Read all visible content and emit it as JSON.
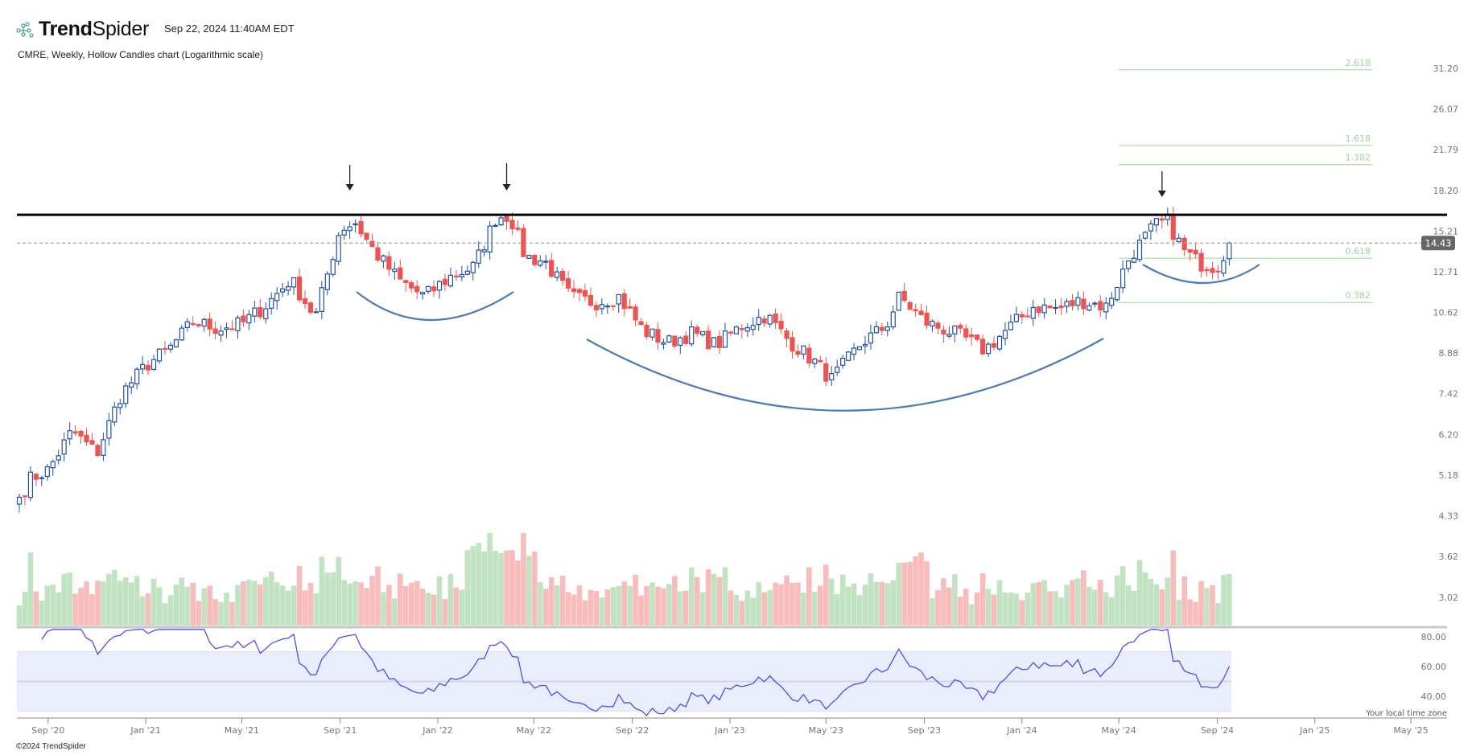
{
  "header": {
    "brand_bold": "Trend",
    "brand_light": "Spider",
    "timestamp": "Sep 22, 2024 11:40AM EDT",
    "subtitle": "CMRE, Weekly, Hollow Candles chart (Logarithmic scale)"
  },
  "footer": {
    "copyright": "©2024 TrendSpider",
    "timezone_note": "Your local time zone"
  },
  "colors": {
    "up": "#1f4fa8",
    "down": "#ef5350",
    "vol_up": "#c2e3c2",
    "vol_down": "#f9bcbc",
    "rsi": "#4b4ef0",
    "rsi_band": "#eaedfb",
    "fib": "#9fd39f",
    "curve": "#4a7bbf"
  },
  "chart_data": {
    "type": "candlestick",
    "ticker": "CMRE",
    "interval": "Weekly",
    "scale": "log",
    "start_week": "2020-07-27",
    "end_week": "2024-09-16",
    "price_axis_ticks": [
      "31.20",
      "26.07",
      "21.79",
      "18.20",
      "15.21",
      "12.71",
      "10.62",
      "8.88",
      "7.42",
      "6.20",
      "5.18",
      "4.33",
      "3.62",
      "3.02"
    ],
    "last_price": "14.43",
    "rsi_axis_ticks": [
      "80.00",
      "60.00",
      "40.00"
    ],
    "rsi_band": [
      30,
      70
    ],
    "x_ticks": [
      "Sep '20",
      "Jan '21",
      "May '21",
      "Sep '21",
      "Jan '22",
      "May '22",
      "Sep '22",
      "Jan '23",
      "May '23",
      "Sep '23",
      "Jan '24",
      "May '24",
      "Sep '24",
      "Jan '25",
      "May '25"
    ],
    "x_tick_dates": [
      "2020-09-01",
      "2021-01-01",
      "2021-05-01",
      "2021-09-01",
      "2022-01-01",
      "2022-05-01",
      "2022-09-01",
      "2023-01-01",
      "2023-05-01",
      "2023-09-01",
      "2024-01-01",
      "2024-05-01",
      "2024-09-01",
      "2025-01-01",
      "2025-05-01"
    ],
    "close_anchors": [
      [
        "2020-07-27",
        4.7
      ],
      [
        "2020-08-10",
        5.1
      ],
      [
        "2020-09-01",
        5.3
      ],
      [
        "2020-10-01",
        6.3
      ],
      [
        "2020-11-01",
        5.7
      ],
      [
        "2020-12-01",
        7.4
      ],
      [
        "2021-01-01",
        8.4
      ],
      [
        "2021-02-01",
        9.1
      ],
      [
        "2021-03-01",
        10.2
      ],
      [
        "2021-04-01",
        9.9
      ],
      [
        "2021-05-01",
        10.1
      ],
      [
        "2021-06-01",
        11.0
      ],
      [
        "2021-07-01",
        12.3
      ],
      [
        "2021-08-01",
        10.4
      ],
      [
        "2021-09-01",
        15.4
      ],
      [
        "2021-09-20",
        15.8
      ],
      [
        "2021-10-15",
        13.8
      ],
      [
        "2021-11-15",
        12.2
      ],
      [
        "2021-12-15",
        11.4
      ],
      [
        "2022-01-15",
        12.4
      ],
      [
        "2022-02-15",
        13.0
      ],
      [
        "2022-03-15",
        16.2
      ],
      [
        "2022-04-01",
        16.3
      ],
      [
        "2022-04-20",
        13.6
      ],
      [
        "2022-05-15",
        13.3
      ],
      [
        "2022-06-15",
        11.4
      ],
      [
        "2022-07-15",
        11.1
      ],
      [
        "2022-08-15",
        11.4
      ],
      [
        "2022-09-15",
        9.8
      ],
      [
        "2022-10-15",
        9.3
      ],
      [
        "2022-11-15",
        9.7
      ],
      [
        "2022-12-15",
        9.2
      ],
      [
        "2023-01-15",
        10.0
      ],
      [
        "2023-02-15",
        10.5
      ],
      [
        "2023-03-15",
        9.4
      ],
      [
        "2023-04-15",
        8.6
      ],
      [
        "2023-05-08",
        7.9
      ],
      [
        "2023-06-15",
        9.3
      ],
      [
        "2023-07-15",
        10.0
      ],
      [
        "2023-08-01",
        11.4
      ],
      [
        "2023-09-01",
        10.2
      ],
      [
        "2023-10-15",
        9.6
      ],
      [
        "2023-11-15",
        9.0
      ],
      [
        "2023-12-15",
        9.9
      ],
      [
        "2024-01-15",
        10.9
      ],
      [
        "2024-02-15",
        10.8
      ],
      [
        "2024-03-15",
        11.2
      ],
      [
        "2024-04-15",
        10.9
      ],
      [
        "2024-05-15",
        13.6
      ],
      [
        "2024-06-15",
        15.6
      ],
      [
        "2024-07-01",
        15.9
      ],
      [
        "2024-07-20",
        14.0
      ],
      [
        "2024-08-10",
        13.2
      ],
      [
        "2024-09-01",
        13.0
      ],
      [
        "2024-09-16",
        14.43
      ]
    ],
    "fib_levels": [
      "2.618",
      "1.618",
      "1.382",
      "0.618",
      "0.382"
    ],
    "fib_prices": [
      31.0,
      22.2,
      20.4,
      13.5,
      11.1
    ],
    "resistance_price": 16.35,
    "annotations": {
      "arrows": [
        "2021-09-13",
        "2022-03-28",
        "2024-06-24"
      ],
      "curves": 3
    }
  }
}
